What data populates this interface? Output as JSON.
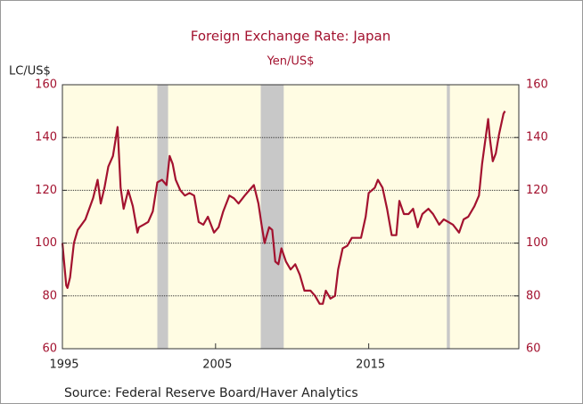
{
  "chart_data": {
    "type": "line",
    "title": "Foreign Exchange Rate: Japan",
    "subtitle": "Yen/US$",
    "y_label": "LC/US$",
    "source": "Source:  Federal Reserve Board/Haver Analytics",
    "xlim": [
      1995,
      2024.8
    ],
    "xticks": [
      1995,
      2005,
      2015
    ],
    "ylim": [
      60,
      160
    ],
    "yticks": [
      60,
      80,
      100,
      120,
      140,
      160
    ],
    "grid": true,
    "background": "#fffce3",
    "shade_color": "#c8c8c8",
    "shaded_periods": [
      [
        2001.2,
        2001.9
      ],
      [
        2007.95,
        2009.45
      ],
      [
        2020.1,
        2020.3
      ]
    ],
    "series": [
      {
        "name": "Yen/US$",
        "color": "#a3122f",
        "x": [
          1995.0,
          1995.25,
          1995.33,
          1995.5,
          1995.75,
          1996.0,
          1996.5,
          1997.0,
          1997.3,
          1997.5,
          1997.75,
          1998.0,
          1998.3,
          1998.6,
          1998.8,
          1999.0,
          1999.3,
          1999.6,
          1999.9,
          2000.0,
          2000.3,
          2000.6,
          2000.9,
          2001.2,
          2001.5,
          2001.8,
          2002.0,
          2002.2,
          2002.4,
          2002.7,
          2003.0,
          2003.3,
          2003.6,
          2003.9,
          2004.2,
          2004.5,
          2004.9,
          2005.2,
          2005.5,
          2005.9,
          2006.2,
          2006.5,
          2006.9,
          2007.2,
          2007.5,
          2007.8,
          2008.0,
          2008.2,
          2008.5,
          2008.7,
          2008.9,
          2009.1,
          2009.3,
          2009.6,
          2009.9,
          2010.2,
          2010.5,
          2010.8,
          2011.2,
          2011.5,
          2011.8,
          2012.0,
          2012.2,
          2012.5,
          2012.8,
          2013.0,
          2013.3,
          2013.6,
          2013.9,
          2014.2,
          2014.5,
          2014.8,
          2015.0,
          2015.4,
          2015.6,
          2015.9,
          2016.2,
          2016.5,
          2016.8,
          2017.0,
          2017.3,
          2017.6,
          2017.9,
          2018.2,
          2018.5,
          2018.9,
          2019.2,
          2019.6,
          2019.9,
          2020.2,
          2020.5,
          2020.9,
          2021.2,
          2021.5,
          2021.9,
          2022.2,
          2022.4,
          2022.8,
          2022.9,
          2023.1,
          2023.3,
          2023.5,
          2023.8,
          2023.9
        ],
        "values": [
          100,
          84,
          83,
          87,
          100,
          105,
          109,
          117,
          124,
          115,
          121,
          129,
          133,
          144,
          121,
          113,
          120,
          114,
          104,
          106,
          107,
          108,
          112,
          123,
          124,
          122,
          133,
          130,
          124,
          120,
          118,
          119,
          118,
          108,
          107,
          110,
          104,
          106,
          112,
          118,
          117,
          115,
          118,
          120,
          122,
          115,
          107,
          100,
          106,
          105,
          93,
          92,
          98,
          93,
          90,
          92,
          88,
          82,
          82,
          80,
          77,
          77,
          82,
          79,
          80,
          90,
          98,
          99,
          102,
          102,
          102,
          110,
          119,
          121,
          124,
          121,
          113,
          103,
          103,
          116,
          111,
          111,
          113,
          106,
          111,
          113,
          111,
          107,
          109,
          108,
          107,
          104,
          109,
          110,
          114,
          118,
          130,
          147,
          140,
          131,
          134,
          141,
          149,
          150
        ]
      }
    ]
  }
}
